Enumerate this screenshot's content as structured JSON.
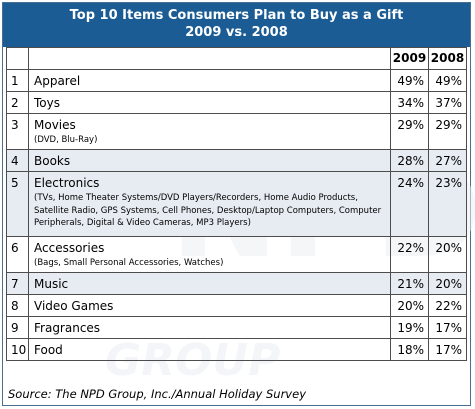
{
  "chart_data": {
    "type": "table",
    "title_line1": "Top 10 Items Consumers Plan to Buy as a Gift",
    "title_line2": "2009 vs. 2008",
    "columns": [
      "",
      "",
      "2009",
      "2008"
    ],
    "rows": [
      {
        "rank": "1",
        "item": "Apparel",
        "detail": "",
        "y2009": "49%",
        "y2008": "49%"
      },
      {
        "rank": "2",
        "item": "Toys",
        "detail": "",
        "y2009": "34%",
        "y2008": "37%"
      },
      {
        "rank": "3",
        "item": "Movies",
        "detail": "(DVD, Blu-Ray)",
        "y2009": "29%",
        "y2008": "29%"
      },
      {
        "rank": "4",
        "item": "Books",
        "detail": "",
        "y2009": "28%",
        "y2008": "27%"
      },
      {
        "rank": "5",
        "item": "Electronics",
        "detail": "(TVs, Home Theater Systems/DVD Players/Recorders, Home Audio Products, Satellite Radio, GPS Systems, Cell Phones, Desktop/Laptop Computers, Computer Peripherals, Digital & Video Cameras, MP3 Players)",
        "y2009": "24%",
        "y2008": "23%"
      },
      {
        "rank": "6",
        "item": "Accessories",
        "detail": "(Bags, Small Personal Accessories, Watches)",
        "y2009": "22%",
        "y2008": "20%"
      },
      {
        "rank": "7",
        "item": "Music",
        "detail": "",
        "y2009": "21%",
        "y2008": "20%"
      },
      {
        "rank": "8",
        "item": "Video Games",
        "detail": "",
        "y2009": "20%",
        "y2008": "22%"
      },
      {
        "rank": "9",
        "item": "Fragrances",
        "detail": "",
        "y2009": "19%",
        "y2008": "17%"
      },
      {
        "rank": "10",
        "item": "Food",
        "detail": "",
        "y2009": "18%",
        "y2008": "17%"
      }
    ],
    "source": "Source: The NPD Group, Inc./Annual Holiday Survey",
    "watermark": "NPD",
    "watermark2": "GROUP"
  },
  "colors": {
    "title_bg": "#1b5c95",
    "title_text": "#ffffff",
    "shaded_row": "#e7ecf3"
  }
}
